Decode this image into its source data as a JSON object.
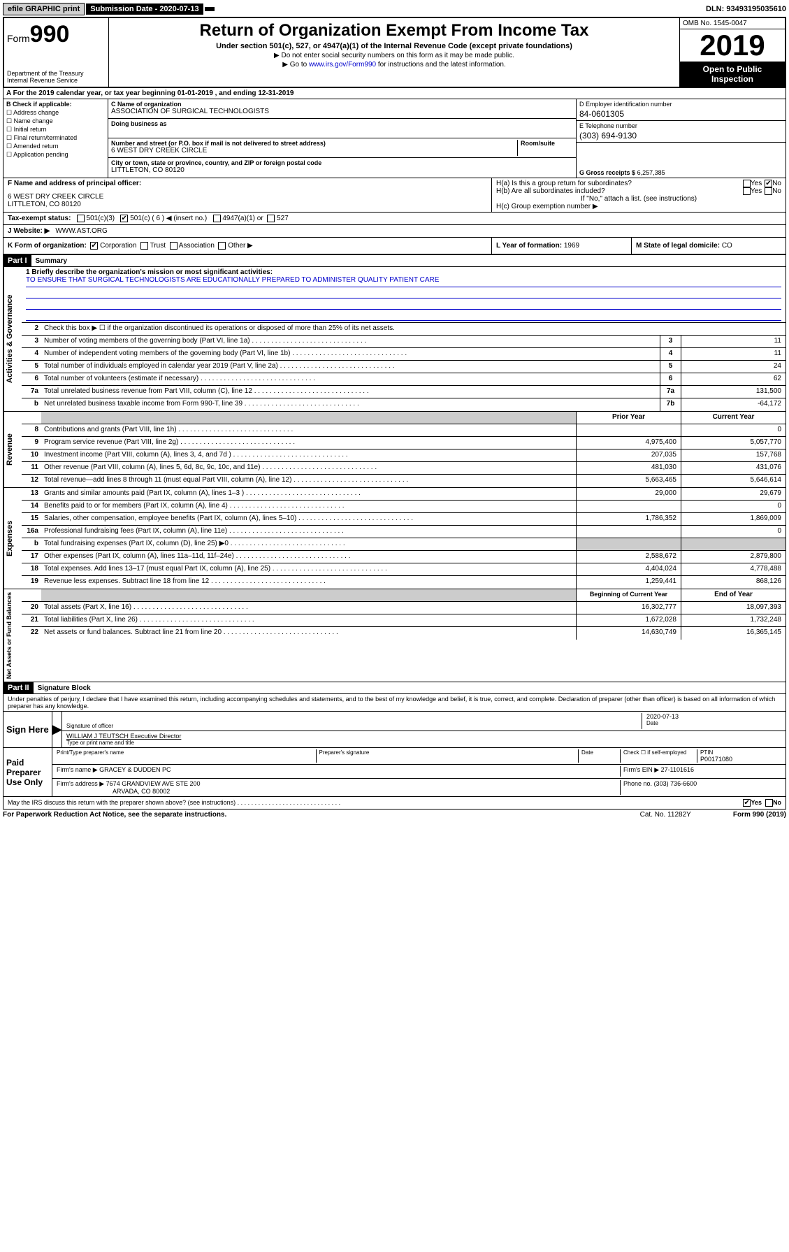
{
  "topbar": {
    "efile": "efile GRAPHIC print",
    "sub_lbl": "Submission Date - 2020-07-13",
    "dln": "DLN: 93493195035610"
  },
  "header": {
    "form": "Form",
    "formnum": "990",
    "dept": "Department of the Treasury\nInternal Revenue Service",
    "title": "Return of Organization Exempt From Income Tax",
    "subtitle": "Under section 501(c), 527, or 4947(a)(1) of the Internal Revenue Code (except private foundations)",
    "note1": "▶ Do not enter social security numbers on this form as it may be made public.",
    "note2_pre": "▶ Go to ",
    "note2_link": "www.irs.gov/Form990",
    "note2_post": " for instructions and the latest information.",
    "omb": "OMB No. 1545-0047",
    "year": "2019",
    "open": "Open to Public Inspection"
  },
  "lineA": "A For the 2019 calendar year, or tax year beginning 01-01-2019   , and ending 12-31-2019",
  "colB": {
    "hd": "B Check if applicable:",
    "opts": [
      "Address change",
      "Name change",
      "Initial return",
      "Final return/terminated",
      "Amended return",
      "Application pending"
    ]
  },
  "colC": {
    "name_lbl": "C Name of organization",
    "name": "ASSOCIATION OF SURGICAL TECHNOLOGISTS",
    "dba_lbl": "Doing business as",
    "addr_lbl": "Number and street (or P.O. box if mail is not delivered to street address)",
    "suite_lbl": "Room/suite",
    "addr": "6 WEST DRY CREEK CIRCLE",
    "city_lbl": "City or town, state or province, country, and ZIP or foreign postal code",
    "city": "LITTLETON, CO  80120"
  },
  "colD": {
    "lbl": "D Employer identification number",
    "val": "84-0601305"
  },
  "colE": {
    "lbl": "E Telephone number",
    "val": "(303) 694-9130"
  },
  "colG": {
    "lbl": "G Gross receipts $",
    "val": "6,257,385"
  },
  "rowF": {
    "lbl": "F Name and address of principal officer:",
    "addr1": "6 WEST DRY CREEK CIRCLE",
    "addr2": "LITTLETON, CO  80120"
  },
  "rowH": {
    "ha": "H(a)  Is this a group return for subordinates?",
    "hb": "H(b)  Are all subordinates included?",
    "hb2": "If \"No,\" attach a list. (see instructions)",
    "hc": "H(c)  Group exemption number ▶",
    "yes": "Yes",
    "no": "No"
  },
  "rowI": {
    "lbl": "Tax-exempt status:",
    "o1": "501(c)(3)",
    "o2": "501(c) ( 6 ) ◀ (insert no.)",
    "o3": "4947(a)(1) or",
    "o4": "527"
  },
  "rowJ": {
    "lbl": "J Website: ▶",
    "val": "WWW.AST.ORG"
  },
  "rowK": {
    "k1_lbl": "K Form of organization:",
    "k1_opts": [
      "Corporation",
      "Trust",
      "Association",
      "Other ▶"
    ],
    "k2_lbl": "L Year of formation:",
    "k2_val": "1969",
    "k3_lbl": "M State of legal domicile:",
    "k3_val": "CO"
  },
  "part1": {
    "hdr": "Part I",
    "title": "Summary"
  },
  "sections": {
    "gov": "Activities & Governance",
    "rev": "Revenue",
    "exp": "Expenses",
    "net": "Net Assets or Fund Balances"
  },
  "mission": {
    "lbl": "1  Briefly describe the organization's mission or most significant activities:",
    "txt": "TO ENSURE THAT SURGICAL TECHNOLOGISTS ARE EDUCATIONALLY PREPARED TO ADMINISTER QUALITY PATIENT CARE"
  },
  "govrows": [
    {
      "n": "2",
      "d": "Check this box ▶ ☐  if the organization discontinued its operations or disposed of more than 25% of its net assets."
    },
    {
      "n": "3",
      "d": "Number of voting members of the governing body (Part VI, line 1a)",
      "c": "3",
      "v": "11"
    },
    {
      "n": "4",
      "d": "Number of independent voting members of the governing body (Part VI, line 1b)",
      "c": "4",
      "v": "11"
    },
    {
      "n": "5",
      "d": "Total number of individuals employed in calendar year 2019 (Part V, line 2a)",
      "c": "5",
      "v": "24"
    },
    {
      "n": "6",
      "d": "Total number of volunteers (estimate if necessary)",
      "c": "6",
      "v": "62"
    },
    {
      "n": "7a",
      "d": "Total unrelated business revenue from Part VIII, column (C), line 12",
      "c": "7a",
      "v": "131,500"
    },
    {
      "n": "b",
      "d": "Net unrelated business taxable income from Form 990-T, line 39",
      "c": "7b",
      "v": "-64,172"
    }
  ],
  "yrHdr": {
    "py": "Prior Year",
    "cy": "Current Year"
  },
  "revrows": [
    {
      "n": "8",
      "d": "Contributions and grants (Part VIII, line 1h)",
      "p": "",
      "c": "0"
    },
    {
      "n": "9",
      "d": "Program service revenue (Part VIII, line 2g)",
      "p": "4,975,400",
      "c": "5,057,770"
    },
    {
      "n": "10",
      "d": "Investment income (Part VIII, column (A), lines 3, 4, and 7d )",
      "p": "207,035",
      "c": "157,768"
    },
    {
      "n": "11",
      "d": "Other revenue (Part VIII, column (A), lines 5, 6d, 8c, 9c, 10c, and 11e)",
      "p": "481,030",
      "c": "431,076"
    },
    {
      "n": "12",
      "d": "Total revenue—add lines 8 through 11 (must equal Part VIII, column (A), line 12)",
      "p": "5,663,465",
      "c": "5,646,614"
    }
  ],
  "exprows": [
    {
      "n": "13",
      "d": "Grants and similar amounts paid (Part IX, column (A), lines 1–3 )",
      "p": "29,000",
      "c": "29,679"
    },
    {
      "n": "14",
      "d": "Benefits paid to or for members (Part IX, column (A), line 4)",
      "p": "",
      "c": "0"
    },
    {
      "n": "15",
      "d": "Salaries, other compensation, employee benefits (Part IX, column (A), lines 5–10)",
      "p": "1,786,352",
      "c": "1,869,009"
    },
    {
      "n": "16a",
      "d": "Professional fundraising fees (Part IX, column (A), line 11e)",
      "p": "",
      "c": "0"
    },
    {
      "n": "b",
      "d": "Total fundraising expenses (Part IX, column (D), line 25) ▶0",
      "p": "shade",
      "c": "shade"
    },
    {
      "n": "17",
      "d": "Other expenses (Part IX, column (A), lines 11a–11d, 11f–24e)",
      "p": "2,588,672",
      "c": "2,879,800"
    },
    {
      "n": "18",
      "d": "Total expenses. Add lines 13–17 (must equal Part IX, column (A), line 25)",
      "p": "4,404,024",
      "c": "4,778,488"
    },
    {
      "n": "19",
      "d": "Revenue less expenses. Subtract line 18 from line 12",
      "p": "1,259,441",
      "c": "868,126"
    }
  ],
  "netHdr": {
    "py": "Beginning of Current Year",
    "cy": "End of Year"
  },
  "netrows": [
    {
      "n": "20",
      "d": "Total assets (Part X, line 16)",
      "p": "16,302,777",
      "c": "18,097,393"
    },
    {
      "n": "21",
      "d": "Total liabilities (Part X, line 26)",
      "p": "1,672,028",
      "c": "1,732,248"
    },
    {
      "n": "22",
      "d": "Net assets or fund balances. Subtract line 21 from line 20",
      "p": "14,630,749",
      "c": "16,365,145"
    }
  ],
  "part2": {
    "hdr": "Part II",
    "title": "Signature Block"
  },
  "perjury": "Under penalties of perjury, I declare that I have examined this return, including accompanying schedules and statements, and to the best of my knowledge and belief, it is true, correct, and complete. Declaration of preparer (other than officer) is based on all information of which preparer has any knowledge.",
  "sign": {
    "here": "Sign Here",
    "sig_lbl": "Signature of officer",
    "date": "2020-07-13",
    "date_lbl": "Date",
    "name": "WILLIAM J TEUTSCH  Executive Director",
    "name_lbl": "Type or print name and title"
  },
  "paid": {
    "lbl": "Paid Preparer Use Only",
    "r1a": "Print/Type preparer's name",
    "r1b": "Preparer's signature",
    "r1c": "Date",
    "r1d_lbl": "Check ☐ if self-employed",
    "ptin_lbl": "PTIN",
    "ptin": "P00171080",
    "firm_lbl": "Firm's name    ▶",
    "firm": "GRACEY & DUDDEN PC",
    "ein_lbl": "Firm's EIN ▶",
    "ein": "27-1101616",
    "addr_lbl": "Firm's address ▶",
    "addr1": "7674 GRANDVIEW AVE STE 200",
    "addr2": "ARVADA, CO  80002",
    "phone_lbl": "Phone no.",
    "phone": "(303) 736-6600"
  },
  "discuss": "May the IRS discuss this return with the preparer shown above? (see instructions)",
  "foot": {
    "l": "For Paperwork Reduction Act Notice, see the separate instructions.",
    "m": "Cat. No. 11282Y",
    "r": "Form 990 (2019)"
  }
}
